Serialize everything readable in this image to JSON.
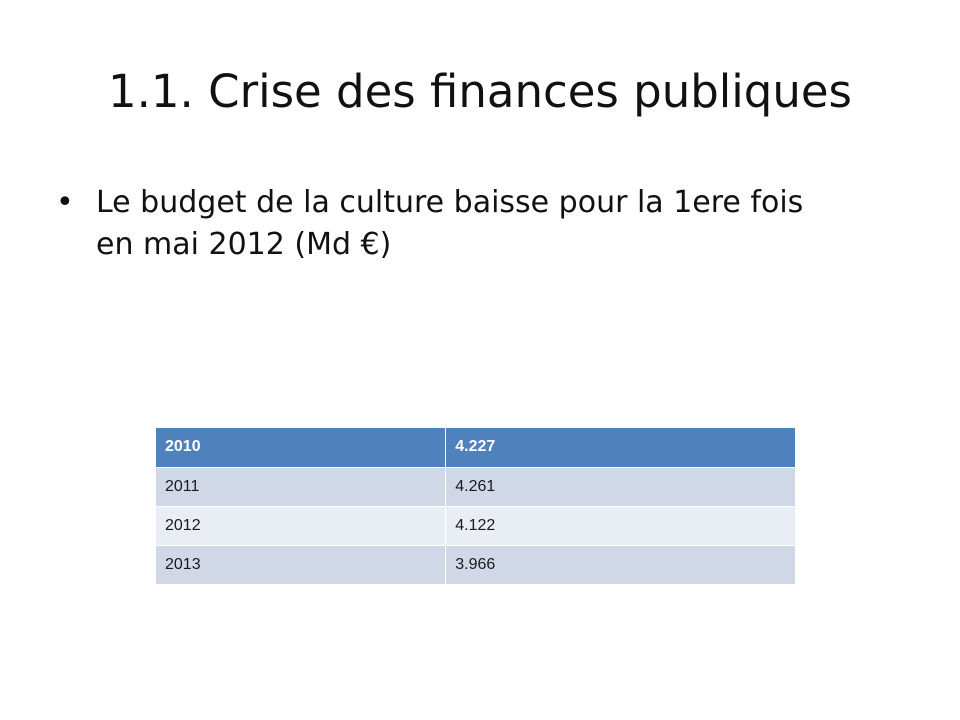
{
  "slide": {
    "title": "1.1. Crise des finances publiques",
    "bullet": {
      "symbol": "•",
      "line1": "Le budget de la culture baisse pour la 1ere fois",
      "line2": "en mai 2012 (Md €)"
    },
    "table": {
      "rows": [
        {
          "year": "2010",
          "value": "4.227"
        },
        {
          "year": "2011",
          "value": "4.261"
        },
        {
          "year": "2012",
          "value": "4.122"
        },
        {
          "year": "2013",
          "value": "3.966"
        }
      ]
    },
    "colors": {
      "header_fill": "#4f81bd",
      "band_dark": "#d0d8e8",
      "band_light": "#e9edf4"
    }
  }
}
